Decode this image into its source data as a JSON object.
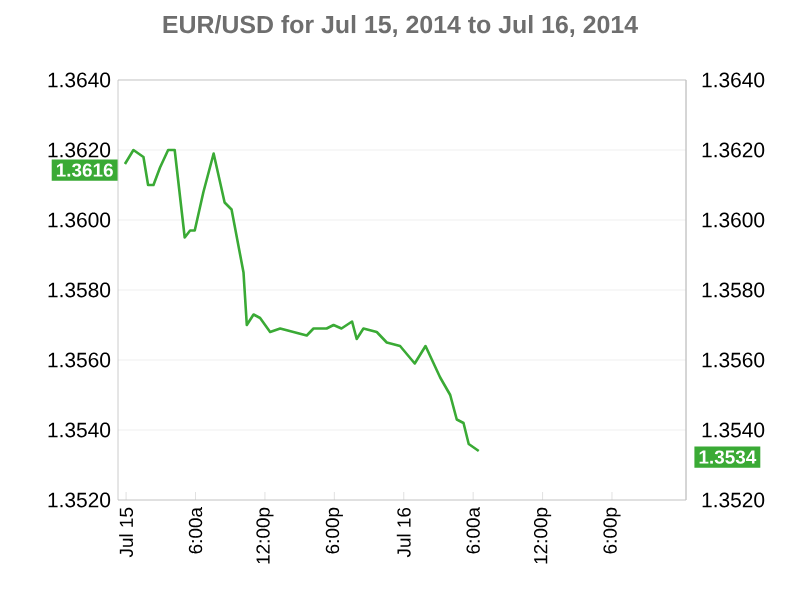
{
  "chart_data": {
    "type": "line",
    "title": "EUR/USD for Jul 15, 2014 to Jul 16, 2014",
    "x": [
      "2014-07-14T23:54",
      "2014-07-15T00:38",
      "2014-07-15T01:30",
      "2014-07-15T01:54",
      "2014-07-15T02:22",
      "2014-07-15T02:56",
      "2014-07-15T03:38",
      "2014-07-15T04:12",
      "2014-07-15T05:04",
      "2014-07-15T05:32",
      "2014-07-15T05:56",
      "2014-07-15T06:41",
      "2014-07-15T07:34",
      "2014-07-15T08:31",
      "2014-07-15T09:07",
      "2014-07-15T10:09",
      "2014-07-15T10:26",
      "2014-07-15T11:01",
      "2014-07-15T11:35",
      "2014-07-15T12:27",
      "2014-07-15T13:19",
      "2014-07-15T14:28",
      "2014-07-15T15:37",
      "2014-07-15T16:12",
      "2014-07-15T17:20",
      "2014-07-15T17:56",
      "2014-07-15T18:37",
      "2014-07-15T19:32",
      "2014-07-15T19:56",
      "2014-07-15T20:31",
      "2014-07-15T21:40",
      "2014-07-15T22:32",
      "2014-07-15T23:41",
      "2014-07-16T00:57",
      "2014-07-16T01:53",
      "2014-07-16T03:09",
      "2014-07-16T04:01",
      "2014-07-16T04:35",
      "2014-07-16T05:10",
      "2014-07-16T05:37",
      "2014-07-16T06:29"
    ],
    "series": [
      {
        "color": "#3aaa35",
        "values": [
          1.3616,
          1.362,
          1.3618,
          1.361,
          1.361,
          1.3615,
          1.362,
          1.362,
          1.3595,
          1.3597,
          1.3597,
          1.3608,
          1.3619,
          1.3605,
          1.3603,
          1.3585,
          1.357,
          1.3573,
          1.3572,
          1.3568,
          1.3569,
          1.3568,
          1.3567,
          1.3569,
          1.3569,
          1.357,
          1.3569,
          1.3571,
          1.3566,
          1.3569,
          1.3568,
          1.3565,
          1.3564,
          1.3559,
          1.3564,
          1.3555,
          1.355,
          1.3543,
          1.3542,
          1.3536,
          1.3534
        ]
      }
    ],
    "xlim": [
      "2014-07-14T23:18",
      "2014-07-17T00:24"
    ],
    "xticks": [
      {
        "value": "2014-07-15T00:00",
        "label": "Jul 15"
      },
      {
        "value": "2014-07-15T06:00",
        "label": "6:00a"
      },
      {
        "value": "2014-07-15T12:00",
        "label": "12:00p"
      },
      {
        "value": "2014-07-15T18:00",
        "label": "6:00p"
      },
      {
        "value": "2014-07-16T00:00",
        "label": "Jul 16"
      },
      {
        "value": "2014-07-16T06:00",
        "label": "6:00a"
      },
      {
        "value": "2014-07-16T12:00",
        "label": "12:00p"
      },
      {
        "value": "2014-07-16T18:00",
        "label": "6:00p"
      }
    ],
    "ylim": [
      1.352,
      1.364
    ],
    "yticks": [
      {
        "value": 1.352,
        "label": "1.3520"
      },
      {
        "value": 1.354,
        "label": "1.3540"
      },
      {
        "value": 1.356,
        "label": "1.3560"
      },
      {
        "value": 1.358,
        "label": "1.3580"
      },
      {
        "value": 1.36,
        "label": "1.3600"
      },
      {
        "value": 1.362,
        "label": "1.3620"
      },
      {
        "value": 1.364,
        "label": "1.3640"
      }
    ],
    "y2lim": [
      1.352,
      1.364
    ],
    "y2ticks": [
      {
        "value": 1.352,
        "label": "1.3520"
      },
      {
        "value": 1.354,
        "label": "1.3540"
      },
      {
        "value": 1.356,
        "label": "1.3560"
      },
      {
        "value": 1.358,
        "label": "1.3580"
      },
      {
        "value": 1.36,
        "label": "1.3600"
      },
      {
        "value": 1.362,
        "label": "1.3620"
      },
      {
        "value": 1.364,
        "label": "1.3640"
      }
    ],
    "annotations": [
      "1.3616",
      "1.3534"
    ],
    "grid": "y",
    "marker": "none",
    "line_style": "solid"
  }
}
